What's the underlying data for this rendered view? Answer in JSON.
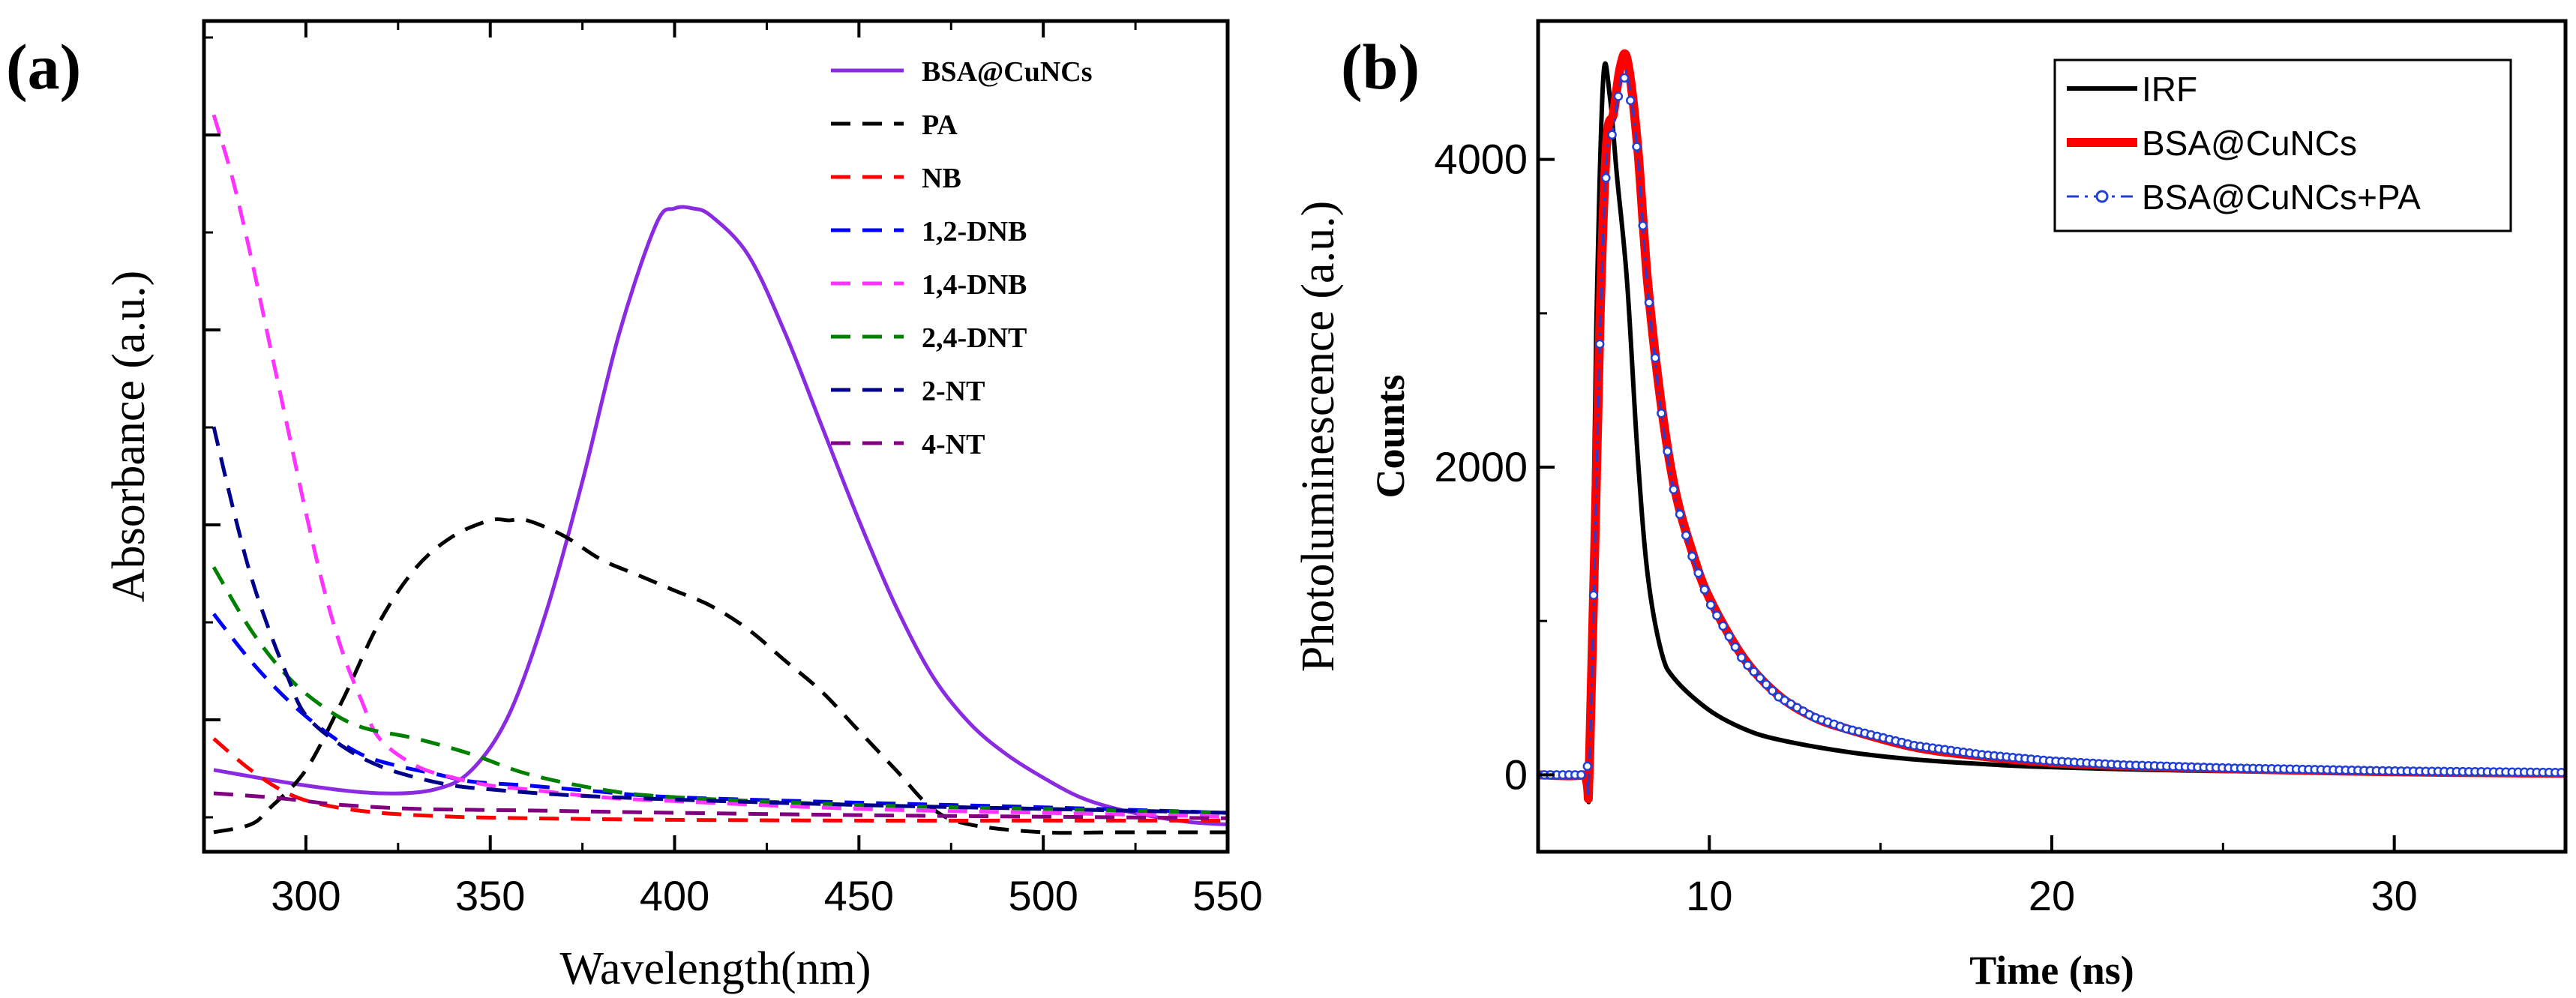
{
  "chart_data": [
    {
      "panel_label": "(a)",
      "type": "line",
      "title": "",
      "xlabel": "Wavelength(nm)",
      "ylabel": "Absorbance (a.u.)",
      "xlim": [
        275,
        550
      ],
      "ylim": [
        0,
        1.0
      ],
      "xticks": [
        300,
        350,
        400,
        450,
        500,
        550
      ],
      "xtick_labels": [
        "300",
        "350",
        "400",
        "450",
        "500",
        "550"
      ],
      "y_tick_labels_shown": false,
      "grid": false,
      "legend_position": "top-right",
      "series": [
        {
          "name": "BSA@CuNCs",
          "color": "#8a2be2",
          "dash": "solid",
          "x": [
            275,
            300,
            320,
            335,
            345,
            355,
            365,
            375,
            385,
            395,
            400,
            405,
            410,
            420,
            430,
            440,
            450,
            460,
            470,
            480,
            490,
            500,
            510,
            520,
            530,
            540,
            550
          ],
          "y": [
            0.08,
            0.06,
            0.05,
            0.055,
            0.08,
            0.15,
            0.28,
            0.45,
            0.64,
            0.78,
            0.8,
            0.8,
            0.79,
            0.74,
            0.64,
            0.52,
            0.4,
            0.29,
            0.2,
            0.14,
            0.1,
            0.07,
            0.045,
            0.03,
            0.02,
            0.013,
            0.01
          ]
        },
        {
          "name": "PA",
          "color": "#000000",
          "dash": "dashed",
          "x": [
            275,
            285,
            290,
            300,
            310,
            320,
            330,
            340,
            350,
            355,
            360,
            370,
            380,
            390,
            400,
            410,
            420,
            430,
            440,
            450,
            460,
            470,
            480,
            500,
            520,
            550
          ],
          "y": [
            0.0,
            0.01,
            0.03,
            0.08,
            0.17,
            0.27,
            0.34,
            0.38,
            0.4,
            0.4,
            0.4,
            0.38,
            0.35,
            0.33,
            0.31,
            0.29,
            0.26,
            0.22,
            0.18,
            0.13,
            0.08,
            0.03,
            0.01,
            0.0,
            0.0,
            0.0
          ]
        },
        {
          "name": "NB",
          "color": "#ff0000",
          "dash": "dashed",
          "x": [
            275,
            285,
            295,
            305,
            320,
            340,
            360,
            400,
            450,
            500,
            550
          ],
          "y": [
            0.12,
            0.08,
            0.05,
            0.035,
            0.025,
            0.02,
            0.018,
            0.016,
            0.015,
            0.015,
            0.015
          ]
        },
        {
          "name": "1,2-DNB",
          "color": "#0000ff",
          "dash": "dashed",
          "x": [
            275,
            285,
            295,
            305,
            315,
            325,
            335,
            345,
            360,
            380,
            400,
            450,
            500,
            550
          ],
          "y": [
            0.28,
            0.22,
            0.17,
            0.13,
            0.1,
            0.085,
            0.075,
            0.065,
            0.06,
            0.052,
            0.045,
            0.038,
            0.032,
            0.025
          ]
        },
        {
          "name": "1,4-DNB",
          "color": "#ff33ff",
          "dash": "dashed",
          "x": [
            275,
            280,
            285,
            290,
            295,
            300,
            305,
            310,
            315,
            320,
            330,
            340,
            350,
            360,
            380,
            400,
            450,
            500,
            550
          ],
          "y": [
            0.92,
            0.84,
            0.74,
            0.63,
            0.52,
            0.41,
            0.31,
            0.23,
            0.17,
            0.12,
            0.085,
            0.07,
            0.06,
            0.055,
            0.045,
            0.04,
            0.03,
            0.025,
            0.02
          ]
        },
        {
          "name": "2,4-DNT",
          "color": "#008000",
          "dash": "dashed",
          "x": [
            275,
            285,
            295,
            305,
            315,
            330,
            345,
            360,
            380,
            400,
            450,
            500,
            550
          ],
          "y": [
            0.34,
            0.26,
            0.2,
            0.16,
            0.135,
            0.12,
            0.1,
            0.075,
            0.055,
            0.045,
            0.035,
            0.03,
            0.025
          ]
        },
        {
          "name": "2-NT",
          "color": "#00008b",
          "dash": "dashed",
          "x": [
            275,
            280,
            285,
            290,
            295,
            300,
            310,
            320,
            330,
            340,
            350,
            370,
            400,
            450,
            500,
            550
          ],
          "y": [
            0.52,
            0.42,
            0.33,
            0.26,
            0.2,
            0.15,
            0.11,
            0.085,
            0.07,
            0.06,
            0.055,
            0.048,
            0.042,
            0.035,
            0.03,
            0.025
          ]
        },
        {
          "name": "4-NT",
          "color": "#800080",
          "dash": "dashed",
          "x": [
            275,
            290,
            300,
            310,
            330,
            360,
            400,
            450,
            500,
            550
          ],
          "y": [
            0.05,
            0.045,
            0.04,
            0.035,
            0.03,
            0.028,
            0.025,
            0.022,
            0.02,
            0.018
          ]
        }
      ]
    },
    {
      "panel_label": "(b)",
      "type": "line",
      "title": "",
      "xlabel": "Time (ns)",
      "ylabel": "Counts",
      "ylabel2": "Photoluminescence (a.u.)",
      "xlim": [
        5,
        35
      ],
      "ylim": [
        -500,
        4900
      ],
      "xticks": [
        10,
        20,
        30
      ],
      "xtick_labels": [
        "10",
        "20",
        "30"
      ],
      "yticks": [
        0,
        2000,
        4000
      ],
      "ytick_labels": [
        "0",
        "2000",
        "4000"
      ],
      "grid": false,
      "legend_position": "top-right",
      "series": [
        {
          "name": "IRF",
          "color": "#000000",
          "style": "solid",
          "x": [
            5,
            6.3,
            6.5,
            6.7,
            6.9,
            7.1,
            7.3,
            7.6,
            7.9,
            8.2,
            8.6,
            9.0,
            10,
            11,
            12,
            14,
            16,
            18,
            20,
            25,
            35
          ],
          "y": [
            0,
            0,
            50,
            2900,
            4520,
            4400,
            3900,
            3200,
            2100,
            1300,
            800,
            620,
            420,
            300,
            230,
            150,
            100,
            70,
            50,
            25,
            10
          ]
        },
        {
          "name": "BSA@CuNCs",
          "color": "#ff0000",
          "style": "solid",
          "x": [
            5,
            6.3,
            6.5,
            6.8,
            7.0,
            7.2,
            7.4,
            7.6,
            7.9,
            8.2,
            8.6,
            9.0,
            9.5,
            10,
            11,
            12,
            13,
            14,
            16,
            18,
            20,
            22,
            25,
            30,
            35
          ],
          "y": [
            0,
            0,
            80,
            2900,
            4100,
            4300,
            4600,
            4650,
            4100,
            3200,
            2400,
            1850,
            1450,
            1150,
            760,
            520,
            380,
            300,
            180,
            120,
            80,
            60,
            40,
            20,
            10
          ]
        },
        {
          "name": "BSA@CuNCs+PA",
          "color": "#1f3fd6",
          "style": "dash-dot with open circles",
          "x": [
            5,
            6.3,
            6.5,
            6.8,
            7.0,
            7.2,
            7.4,
            7.6,
            7.9,
            8.2,
            8.6,
            9.0,
            9.5,
            10,
            11,
            12,
            13,
            14,
            16,
            18,
            20,
            22,
            25,
            30,
            35
          ],
          "y": [
            0,
            0,
            80,
            2800,
            4000,
            4200,
            4500,
            4550,
            4050,
            3150,
            2350,
            1800,
            1420,
            1120,
            740,
            510,
            380,
            300,
            190,
            130,
            90,
            65,
            45,
            25,
            15
          ]
        }
      ]
    }
  ]
}
